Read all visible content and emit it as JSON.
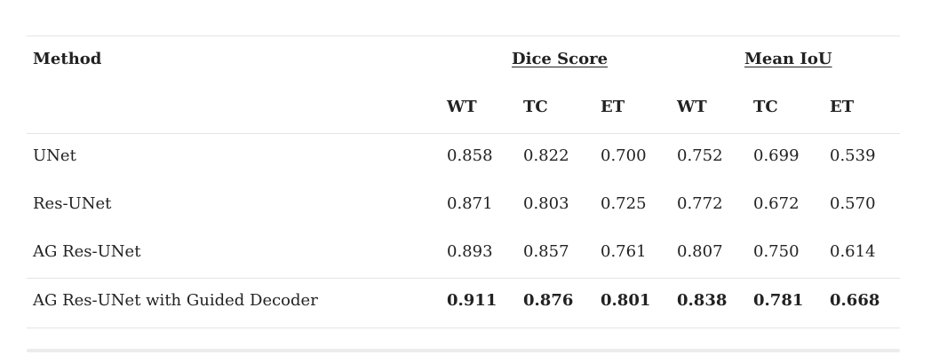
{
  "table": {
    "method_header": "Method",
    "groups": [
      "Dice Score",
      "Mean IoU"
    ],
    "subheaders": [
      "WT",
      "TC",
      "ET",
      "WT",
      "TC",
      "ET"
    ],
    "rows": [
      {
        "method": "UNet",
        "values": [
          "0.858",
          "0.822",
          "0.700",
          "0.752",
          "0.699",
          "0.539"
        ]
      },
      {
        "method": "Res-UNet",
        "values": [
          "0.871",
          "0.803",
          "0.725",
          "0.772",
          "0.672",
          "0.570"
        ]
      },
      {
        "method": "AG Res-UNet",
        "values": [
          "0.893",
          "0.857",
          "0.761",
          "0.807",
          "0.750",
          "0.614"
        ]
      },
      {
        "method": "AG Res-UNet with Guided Decoder",
        "values": [
          "0.911",
          "0.876",
          "0.801",
          "0.838",
          "0.781",
          "0.668"
        ]
      }
    ]
  }
}
